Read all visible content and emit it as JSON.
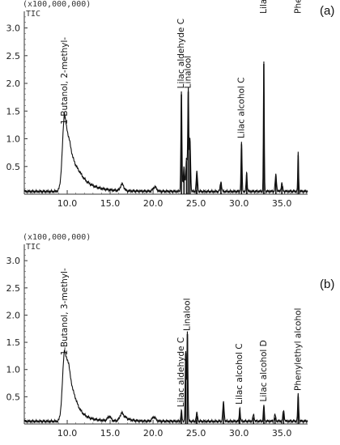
{
  "chart_data": [
    {
      "type": "line",
      "panel_label": "(a)",
      "y_multiplier_label": "(x100,000,000)",
      "signal_label": "TIC",
      "x_ticks": [
        "10.0",
        "15.0",
        "20.0",
        "25.0",
        "30.0",
        "35.0"
      ],
      "y_ticks": [
        "0.5",
        "1.0",
        "1.5",
        "2.0",
        "2.5",
        "3.0"
      ],
      "xlim": [
        5.0,
        38.0
      ],
      "ylim": [
        0,
        3.3
      ],
      "baseline": 0.05,
      "peaks": [
        {
          "x": 9.7,
          "y": 1.2,
          "w": 0.25
        },
        {
          "x": 10.3,
          "y": 0.45,
          "w": 0.5
        },
        {
          "x": 11.5,
          "y": 0.15,
          "w": 0.8
        },
        {
          "x": 16.4,
          "y": 0.12,
          "w": 0.2
        },
        {
          "x": 20.2,
          "y": 0.08,
          "w": 0.2
        },
        {
          "x": 23.3,
          "y": 1.8,
          "w": 0.06
        },
        {
          "x": 23.6,
          "y": 0.45,
          "w": 0.08
        },
        {
          "x": 23.9,
          "y": 0.6,
          "w": 0.08
        },
        {
          "x": 24.1,
          "y": 1.85,
          "w": 0.06
        },
        {
          "x": 24.3,
          "y": 0.95,
          "w": 0.07
        },
        {
          "x": 25.1,
          "y": 0.35,
          "w": 0.08
        },
        {
          "x": 27.9,
          "y": 0.18,
          "w": 0.08
        },
        {
          "x": 30.3,
          "y": 0.9,
          "w": 0.06
        },
        {
          "x": 30.9,
          "y": 0.35,
          "w": 0.06
        },
        {
          "x": 32.9,
          "y": 2.35,
          "w": 0.05
        },
        {
          "x": 34.3,
          "y": 0.3,
          "w": 0.08
        },
        {
          "x": 35.0,
          "y": 0.15,
          "w": 0.08
        },
        {
          "x": 36.9,
          "y": 0.7,
          "w": 0.05
        }
      ],
      "annotations": [
        {
          "text": "1-Butanol, 2-methyl-",
          "x": 9.7,
          "y": 1.2
        },
        {
          "text": "Lilac aldehyde C",
          "x": 23.3,
          "y": 1.85
        },
        {
          "text": "Linalool",
          "x": 24.1,
          "y": 1.85
        },
        {
          "text": "Lilac alcohol C",
          "x": 30.3,
          "y": 0.95
        },
        {
          "text": "Lilac alcohol D",
          "x": 32.9,
          "y": 3.2
        },
        {
          "text": "Phenylethyl alcohol",
          "x": 36.9,
          "y": 3.2
        }
      ]
    },
    {
      "type": "line",
      "panel_label": "(b)",
      "y_multiplier_label": "(x100,000,000)",
      "signal_label": "TIC",
      "x_ticks": [
        "10.0",
        "15.0",
        "20.0",
        "25.0",
        "30.0",
        "35.0"
      ],
      "y_ticks": [
        "0.5",
        "1.0",
        "1.5",
        "2.0",
        "2.5",
        "3.0"
      ],
      "xlim": [
        5.0,
        38.0
      ],
      "ylim": [
        0,
        3.3
      ],
      "baseline": 0.05,
      "peaks": [
        {
          "x": 9.7,
          "y": 1.2,
          "w": 0.25
        },
        {
          "x": 10.2,
          "y": 0.5,
          "w": 0.3
        },
        {
          "x": 11.0,
          "y": 0.15,
          "w": 0.6
        },
        {
          "x": 14.9,
          "y": 0.08,
          "w": 0.2
        },
        {
          "x": 16.4,
          "y": 0.15,
          "w": 0.25
        },
        {
          "x": 20.1,
          "y": 0.08,
          "w": 0.2
        },
        {
          "x": 23.3,
          "y": 0.2,
          "w": 0.06
        },
        {
          "x": 23.8,
          "y": 1.3,
          "w": 0.06
        },
        {
          "x": 24.0,
          "y": 1.65,
          "w": 0.06
        },
        {
          "x": 25.1,
          "y": 0.15,
          "w": 0.08
        },
        {
          "x": 28.2,
          "y": 0.35,
          "w": 0.08
        },
        {
          "x": 30.1,
          "y": 0.25,
          "w": 0.06
        },
        {
          "x": 31.7,
          "y": 0.12,
          "w": 0.08
        },
        {
          "x": 32.9,
          "y": 0.3,
          "w": 0.06
        },
        {
          "x": 34.2,
          "y": 0.12,
          "w": 0.08
        },
        {
          "x": 35.2,
          "y": 0.2,
          "w": 0.08
        },
        {
          "x": 36.9,
          "y": 0.5,
          "w": 0.06
        }
      ],
      "annotations": [
        {
          "text": "1-Butanol, 3-methyl-",
          "x": 9.7,
          "y": 1.2
        },
        {
          "text": "Lilac aldehyde C",
          "x": 23.3,
          "y": 0.25
        },
        {
          "text": "Linalool",
          "x": 24.0,
          "y": 1.65
        },
        {
          "text": "Lilac alcohol C",
          "x": 30.1,
          "y": 0.3
        },
        {
          "text": "Lilac alcohol D",
          "x": 32.9,
          "y": 0.35
        },
        {
          "text": "Phenylethyl alcohol",
          "x": 36.9,
          "y": 0.55
        }
      ]
    }
  ]
}
